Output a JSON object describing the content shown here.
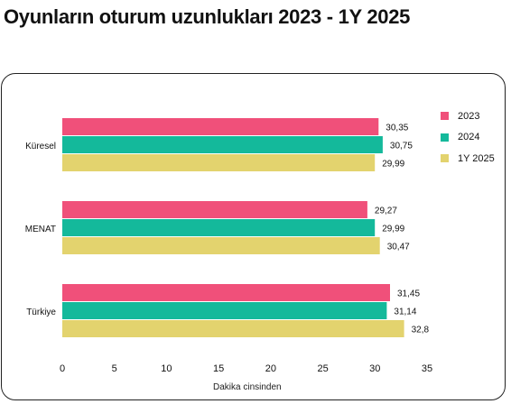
{
  "page": {
    "title": "Oyunların oturum uzunlukları 2023 - 1Y 2025"
  },
  "colors": {
    "2023": "#f0507a",
    "2024": "#14b99b",
    "1Y 2025": "#e3d36e"
  },
  "chart_data": {
    "type": "bar",
    "orientation": "horizontal",
    "categories": [
      "Küresel",
      "MENAT",
      "Türkiye"
    ],
    "series": [
      {
        "name": "2023",
        "values": [
          30.35,
          29.27,
          31.45
        ],
        "labels": [
          "30,35",
          "29,27",
          "31,45"
        ]
      },
      {
        "name": "2024",
        "values": [
          30.75,
          29.99,
          31.14
        ],
        "labels": [
          "30,75",
          "29,99",
          "31,14"
        ]
      },
      {
        "name": "1Y 2025",
        "values": [
          29.99,
          30.47,
          32.8
        ],
        "labels": [
          "29,99",
          "30,47",
          "32,8"
        ]
      }
    ],
    "xlabel": "Dakika cinsinden",
    "ylabel": "",
    "xlim": [
      0,
      35
    ],
    "xticks": [
      "0",
      "5",
      "10",
      "15",
      "20",
      "25",
      "30",
      "35"
    ],
    "grid": false,
    "legend": "right"
  }
}
